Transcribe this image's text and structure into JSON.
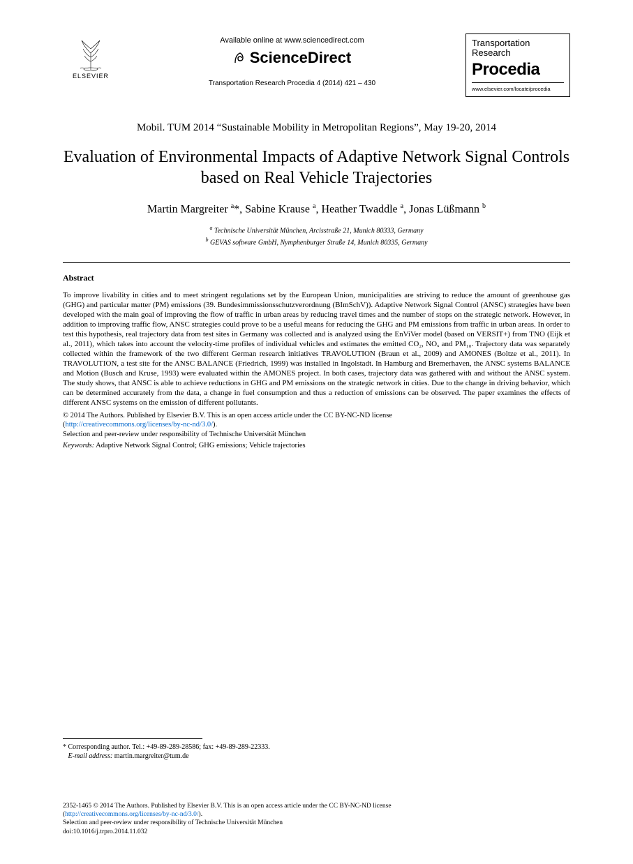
{
  "header": {
    "elsevier_label": "ELSEVIER",
    "available_online": "Available online at www.sciencedirect.com",
    "sciencedirect": "ScienceDirect",
    "citation": "Transportation Research Procedia 4 (2014) 421 – 430",
    "procedia": {
      "line1": "Transportation",
      "line2": "Research",
      "main": "Procedia",
      "url": "www.elsevier.com/locate/procedia"
    }
  },
  "conference": "Mobil. TUM 2014 “Sustainable Mobility in Metropolitan Regions”, May 19-20, 2014",
  "title": "Evaluation of Environmental Impacts of Adaptive Network Signal Controls based on Real Vehicle Trajectories",
  "authors_html": "Martin Margreiter <sup>a</sup>*, Sabine Krause <sup>a</sup>, Heather Twaddle <sup>a</sup>, Jonas Lüßmann <sup>b</sup>",
  "affiliations": {
    "a": "Technische Universität München, Arcisstraße 21, Munich 80333, Germany",
    "b": "GEVAS software GmbH, Nymphenburger Straße 14, Munich 80335, Germany"
  },
  "abstract": {
    "heading": "Abstract",
    "body": "To improve livability in cities and to meet stringent regulations set by the European Union, municipalities are striving to reduce the amount of greenhouse gas (GHG) and particular matter (PM) emissions (39. Bundesimmissionsschutzverordnung (BImSchV)). Adaptive Network Signal Control (ANSC) strategies have been developed with the main goal of improving the flow of traffic in urban areas by reducing travel times and the number of stops on the strategic network. However, in addition to improving traffic flow, ANSC strategies could prove to be a useful means for reducing the GHG and PM emissions from traffic in urban areas. In order to test this hypothesis, real trajectory data from test sites in Germany was collected and is analyzed using the EnViVer model (based on VERSIT+) from TNO (Eijk et al., 2011), which takes into account the velocity-time profiles of individual vehicles and estimates the emitted CO₂, NOₓ and PM₁₀. Trajectory data was separately collected within the framework of the two different German research initiatives TRAVOLUTION (Braun et al., 2009) and AMONES (Boltze et al., 2011). In TRAVOLUTION, a test site for the ANSC BALANCE (Friedrich, 1999) was installed in Ingolstadt. In Hamburg and Bremerhaven, the ANSC systems BALANCE and Motion (Busch and Kruse, 1993) were evaluated within the AMONES project. In both cases, trajectory data was gathered with and without the ANSC system. The study shows, that ANSC is able to achieve reductions in GHG and PM emissions on the strategic network in cities. Due to the change in driving behavior, which can be determined accurately from the data, a change in fuel consumption and thus a reduction of emissions can be observed. The paper examines the effects of different ANSC systems on the emission of different pollutants."
  },
  "copyright": {
    "line1": "© 2014 The Authors. Published by Elsevier B.V. This is an open access article under the CC BY-NC-ND license",
    "license_url_text": "http://creativecommons.org/licenses/by-nc-nd/3.0/",
    "line2": "Selection and peer-review under responsibility of Technische Universität München"
  },
  "keywords": {
    "label": "Keywords:",
    "text": " Adaptive Network Signal Control; GHG emissions; Vehicle trajectories"
  },
  "corresponding": {
    "note": "* Corresponding author. Tel.: +49-89-289-28586; fax: +49-89-289-22333.",
    "email_label": "E-mail address:",
    "email": " martin.margreiter@tum.de"
  },
  "footer": {
    "issn_line": "2352-1465 © 2014 The Authors. Published by Elsevier B.V. This is an open access article under the CC BY-NC-ND license",
    "license_url_text": "http://creativecommons.org/licenses/by-nc-nd/3.0/",
    "peer_review": "Selection and peer-review under responsibility of Technische Universität München",
    "doi": "doi:10.1016/j.trpro.2014.11.032"
  },
  "colors": {
    "text": "#000000",
    "link": "#0066cc",
    "background": "#ffffff"
  }
}
